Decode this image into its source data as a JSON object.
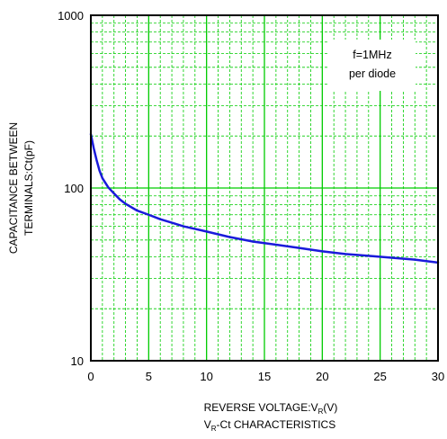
{
  "chart_data": {
    "type": "line",
    "xlabel_main": "REVERSE VOLTAGE:V",
    "xlabel_sub": "R",
    "xlabel_unit": "(V)",
    "title_main": "V",
    "title_sub": "R",
    "title_rest": "-Ct CHARACTERISTICS",
    "ylabel_line1": "CAPACITANCE BETWEEN",
    "ylabel_line2": "TERMINALS:Ct(pF)",
    "yscale": "log",
    "xlim": [
      0,
      30
    ],
    "ylim": [
      10,
      1000
    ],
    "x_ticks": [
      "0",
      "5",
      "10",
      "15",
      "20",
      "25",
      "30"
    ],
    "y_ticks": [
      "10",
      "100",
      "1000"
    ],
    "grid": true,
    "grid_color": "#00cc00",
    "line_color": "#1a1adb",
    "annotation_line1": "f=1MHz",
    "annotation_line2": "per diode",
    "series": [
      {
        "x": [
          0,
          0.25,
          0.5,
          0.75,
          1,
          1.5,
          2,
          2.5,
          3,
          4,
          5,
          6,
          7,
          8,
          9,
          10,
          12,
          14,
          16,
          18,
          20,
          22,
          24,
          26,
          28,
          30
        ],
        "values": [
          205,
          170,
          145,
          126,
          114,
          101,
          93,
          86,
          81,
          74,
          70,
          66,
          63,
          60,
          58,
          56,
          52,
          49,
          47,
          45,
          43,
          41.5,
          40.5,
          39.5,
          38.5,
          37
        ]
      }
    ]
  }
}
